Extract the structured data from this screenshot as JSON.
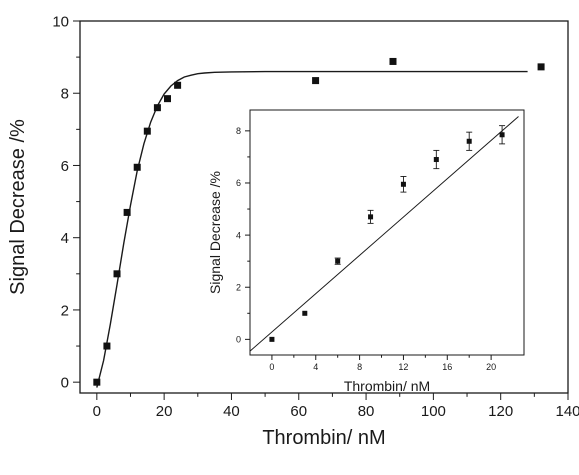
{
  "chart_data": [
    {
      "type": "scatter",
      "panel": "main",
      "xlabel": "Thrombin/ nM",
      "ylabel": "Signal Decrease /%",
      "xlim": [
        -5,
        140
      ],
      "ylim": [
        -0.3,
        10
      ],
      "x_ticks": [
        0,
        20,
        40,
        60,
        80,
        100,
        120,
        140
      ],
      "y_ticks": [
        0,
        2,
        4,
        6,
        8,
        10
      ],
      "grid": false,
      "series": [
        {
          "kind": "points",
          "marker": "square",
          "x": [
            0,
            3,
            6,
            9,
            12,
            15,
            18,
            21,
            24,
            65,
            88,
            132
          ],
          "y": [
            0.0,
            1.0,
            3.0,
            4.7,
            5.95,
            6.95,
            7.6,
            7.85,
            8.22,
            8.35,
            8.88,
            8.73
          ]
        },
        {
          "kind": "fit-line",
          "x": [
            0,
            2,
            4,
            6,
            8,
            10,
            12,
            14,
            16,
            18,
            20,
            22,
            24,
            26,
            28,
            30,
            32,
            35,
            40,
            50,
            60,
            80,
            100,
            128
          ],
          "y": [
            -0.15,
            0.6,
            1.6,
            2.7,
            3.85,
            4.9,
            5.85,
            6.6,
            7.2,
            7.65,
            7.98,
            8.2,
            8.35,
            8.45,
            8.5,
            8.54,
            8.56,
            8.58,
            8.59,
            8.6,
            8.6,
            8.6,
            8.6,
            8.6
          ]
        }
      ]
    },
    {
      "type": "scatter",
      "panel": "inset",
      "xlabel": "Thrombin/ nM",
      "ylabel": "Signal Decrease /%",
      "xlim": [
        -2,
        23
      ],
      "ylim": [
        -0.6,
        8.8
      ],
      "x_ticks": [
        0,
        4,
        8,
        12,
        16,
        20
      ],
      "y_ticks": [
        0,
        2,
        4,
        6,
        8
      ],
      "grid": false,
      "series": [
        {
          "kind": "points",
          "marker": "square",
          "error_bars": true,
          "x": [
            0,
            3,
            6,
            9,
            12,
            15,
            18,
            21
          ],
          "y": [
            0.0,
            1.0,
            3.0,
            4.7,
            5.95,
            6.9,
            7.6,
            7.85
          ],
          "err": [
            0.0,
            0.0,
            0.12,
            0.25,
            0.3,
            0.35,
            0.35,
            0.35
          ]
        },
        {
          "kind": "fit-line",
          "x": [
            -2,
            22.5
          ],
          "y": [
            -0.45,
            8.55
          ]
        }
      ]
    }
  ]
}
